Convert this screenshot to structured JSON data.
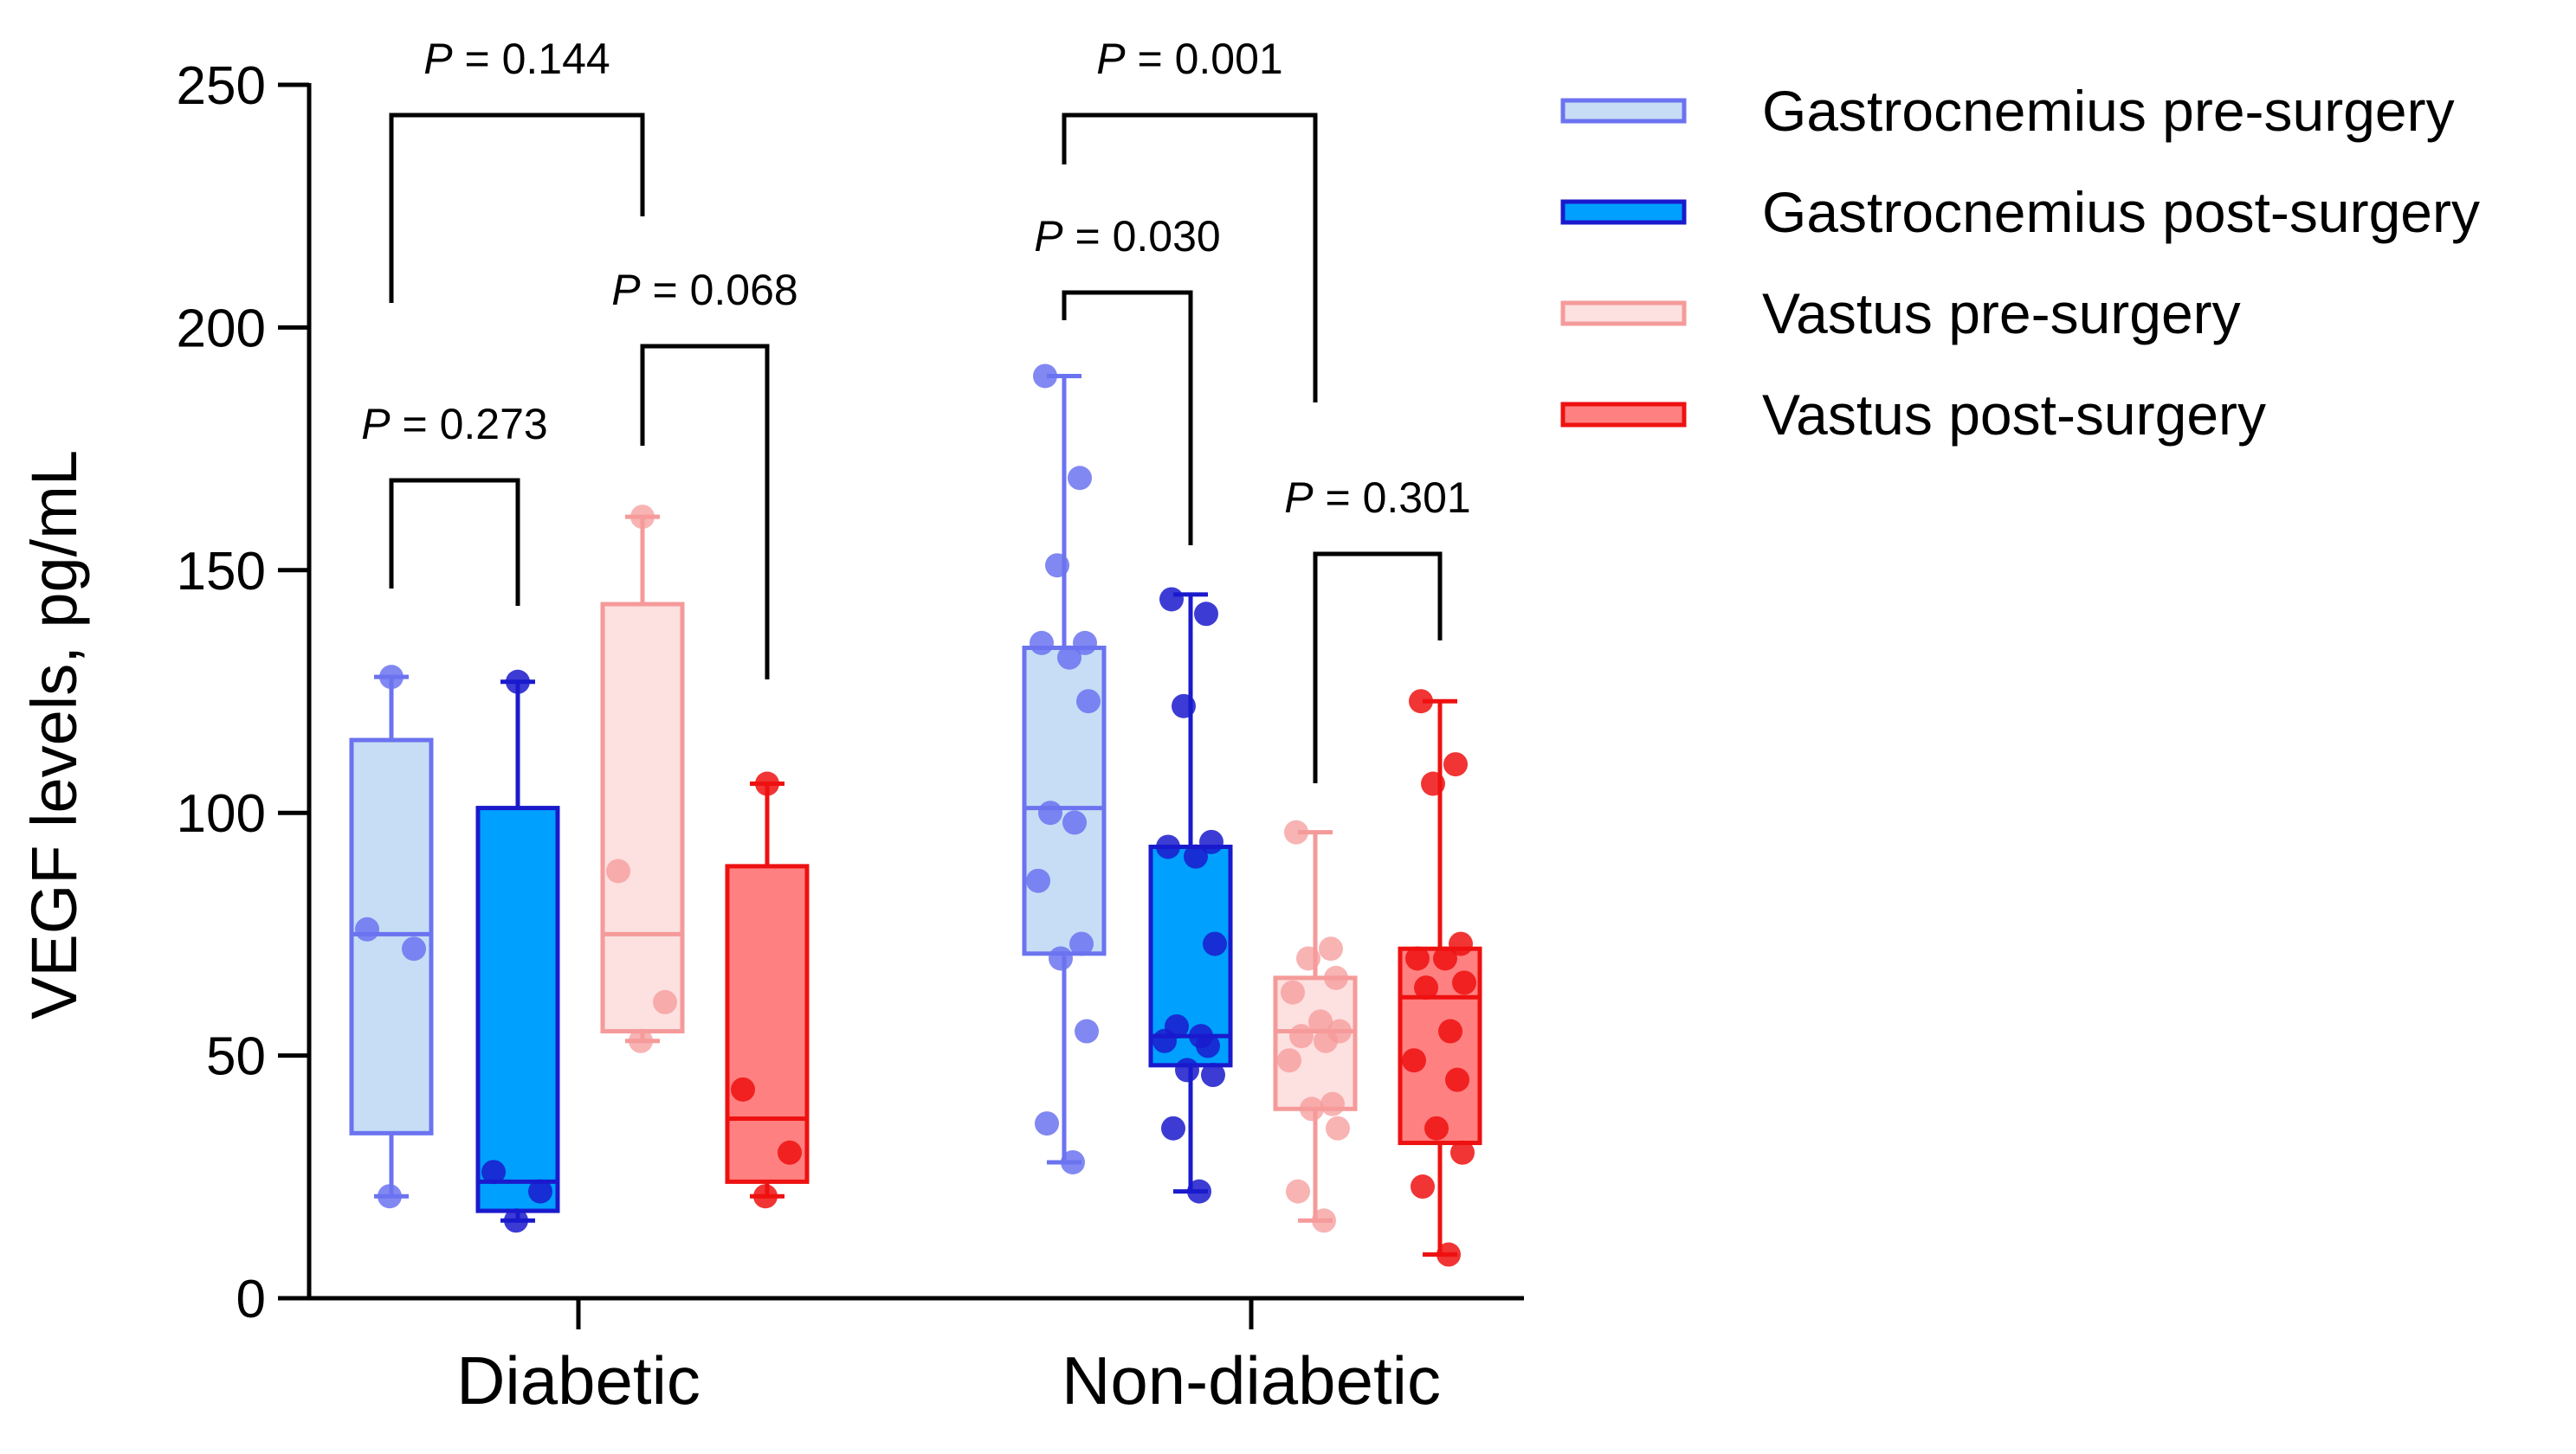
{
  "chart_data": {
    "type": "box",
    "ylabel": "VEGF levels, pg/mL",
    "xlabel": "",
    "ylim": [
      0,
      250
    ],
    "yticks": [
      0,
      50,
      100,
      150,
      200,
      250
    ],
    "categories": [
      "Diabetic",
      "Non-diabetic"
    ],
    "legend_position": "top-right",
    "series": [
      {
        "name": "Gastrocnemius pre-surgery",
        "fill": "#c6ddf5",
        "stroke": "#6b73f0",
        "groups": [
          {
            "min": 21,
            "q1": 34,
            "median": 75,
            "q3": 115,
            "max": 128,
            "points": [
              128,
              76,
              72,
              21
            ]
          },
          {
            "min": 28,
            "q1": 71,
            "median": 101,
            "q3": 134,
            "max": 190,
            "points": [
              190,
              169,
              151,
              135,
              135,
              132,
              123,
              100,
              98,
              86,
              73,
              70,
              55,
              36,
              28
            ]
          }
        ]
      },
      {
        "name": "Gastrocnemius post-surgery",
        "fill": "#00a0ff",
        "stroke": "#1a1acc",
        "groups": [
          {
            "min": 16,
            "q1": 18,
            "median": 24,
            "q3": 101,
            "max": 127,
            "points": [
              127,
              26,
              22,
              16
            ]
          },
          {
            "min": 22,
            "q1": 48,
            "median": 54,
            "q3": 93,
            "max": 145,
            "points": [
              144,
              141,
              122,
              94,
              93,
              91,
              73,
              56,
              54,
              53,
              52,
              47,
              46,
              35,
              22
            ]
          }
        ]
      },
      {
        "name": "Vastus pre-surgery",
        "fill": "#fde0e0",
        "stroke": "#f59a9a",
        "groups": [
          {
            "min": 53,
            "q1": 55,
            "median": 75,
            "q3": 143,
            "max": 161,
            "points": [
              161,
              88,
              61,
              53
            ]
          },
          {
            "min": 16,
            "q1": 39,
            "median": 55,
            "q3": 66,
            "max": 96,
            "points": [
              96,
              72,
              70,
              66,
              63,
              57,
              55,
              54,
              53,
              49,
              40,
              39,
              35,
              22,
              16
            ]
          }
        ]
      },
      {
        "name": "Vastus post-surgery",
        "fill": "#ff8080",
        "stroke": "#ee1111",
        "groups": [
          {
            "min": 21,
            "q1": 24,
            "median": 37,
            "q3": 89,
            "max": 106,
            "points": [
              106,
              43,
              30,
              21
            ]
          },
          {
            "min": 9,
            "q1": 32,
            "median": 62,
            "q3": 72,
            "max": 123,
            "points": [
              123,
              110,
              106,
              73,
              70,
              70,
              65,
              64,
              55,
              49,
              45,
              35,
              30,
              23,
              9
            ]
          }
        ]
      }
    ],
    "comparisons": [
      {
        "group": 0,
        "from_series": 0,
        "to_series": 1,
        "p_prefix": "P",
        "p_text": " = 0.273"
      },
      {
        "group": 0,
        "from_series": 0,
        "to_series": 2,
        "p_prefix": "P",
        "p_text": " = 0.144"
      },
      {
        "group": 0,
        "from_series": 2,
        "to_series": 3,
        "p_prefix": "P",
        "p_text": " = 0.068"
      },
      {
        "group": 1,
        "from_series": 0,
        "to_series": 1,
        "p_prefix": "P",
        "p_text": " = 0.030"
      },
      {
        "group": 1,
        "from_series": 0,
        "to_series": 2,
        "p_prefix": "P",
        "p_text": " = 0.001"
      },
      {
        "group": 1,
        "from_series": 2,
        "to_series": 3,
        "p_prefix": "P",
        "p_text": " = 0.301"
      }
    ]
  }
}
